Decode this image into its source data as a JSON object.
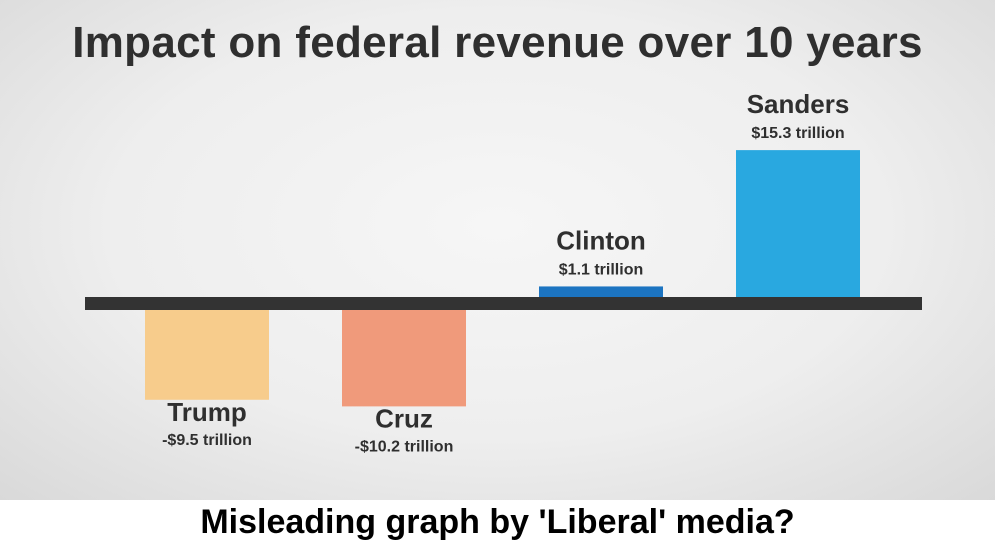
{
  "chart_data": {
    "type": "bar",
    "title": "Impact on federal revenue over 10 years",
    "xlabel": "",
    "ylabel": "",
    "categories": [
      "Trump",
      "Cruz",
      "Clinton",
      "Sanders"
    ],
    "values": [
      -9.5,
      -10.2,
      1.1,
      15.3
    ],
    "value_labels": [
      "-$9.5 trillion",
      "-$10.2 trillion",
      "$1.1 trillion",
      "$15.3 trillion"
    ],
    "unit": "trillion dollars",
    "colors": [
      "#f7cc8c",
      "#f09a7b",
      "#1c74c1",
      "#29a8e0"
    ],
    "axis_color": "#333333",
    "grid": false,
    "legend": "none"
  },
  "caption": "Misleading graph by 'Liberal' media?"
}
